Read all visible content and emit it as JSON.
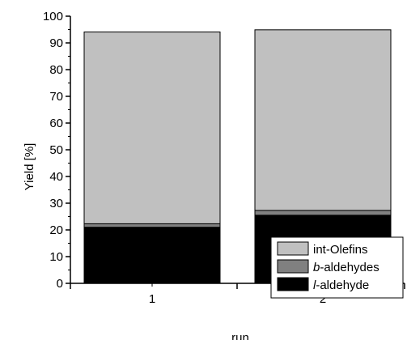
{
  "chart_data": {
    "type": "bar",
    "stacked": true,
    "categories": [
      "1",
      "2"
    ],
    "xlabel": "run",
    "ylabel": "Yield [%]",
    "ylim": [
      0,
      100
    ],
    "yticks": [
      0,
      10,
      20,
      30,
      40,
      50,
      60,
      70,
      80,
      90,
      100
    ],
    "grid": false,
    "legend_position": "bottom-right",
    "series": [
      {
        "name": "l-aldehyde",
        "name_italic": "l",
        "name_rest": "-aldehyde",
        "values": [
          21.0,
          25.5
        ],
        "color": "#000000"
      },
      {
        "name": "b-aldehydes",
        "name_italic": "b",
        "name_rest": "-aldehydes",
        "values": [
          1.3,
          1.8
        ],
        "color": "#808080"
      },
      {
        "name": "int-Olefins",
        "name_italic": "",
        "name_rest": "int-Olefins",
        "values": [
          71.8,
          67.6
        ],
        "color": "#c0c0c0"
      }
    ]
  }
}
